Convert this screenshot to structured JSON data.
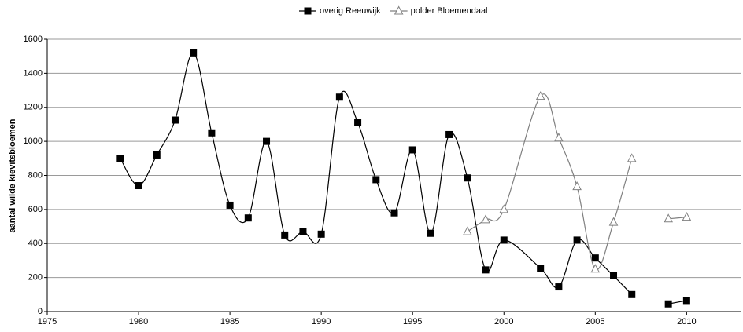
{
  "chart_data": {
    "type": "line",
    "smooth": true,
    "y_label": "aantal wilde kievitsbloemen",
    "x": [
      1979,
      1980,
      1981,
      1982,
      1983,
      1984,
      1985,
      1986,
      1987,
      1988,
      1989,
      1990,
      1991,
      1992,
      1993,
      1994,
      1995,
      1996,
      1997,
      1998,
      1999,
      2000,
      2002,
      2003,
      2004,
      2005,
      2006,
      2007,
      2008,
      2009,
      2010
    ],
    "series": [
      {
        "name": "overig Reeuwijk",
        "color": "#000000",
        "marker": "square",
        "values": [
          900,
          740,
          920,
          1125,
          1520,
          1050,
          625,
          550,
          1000,
          450,
          470,
          455,
          1260,
          1110,
          775,
          580,
          950,
          460,
          1040,
          785,
          245,
          420,
          255,
          145,
          420,
          315,
          210,
          100,
          null,
          45,
          65
        ]
      },
      {
        "name": "polder Bloemendaal",
        "color": "#808080",
        "marker": "triangle",
        "values": [
          null,
          null,
          null,
          null,
          null,
          null,
          null,
          null,
          null,
          null,
          null,
          null,
          null,
          null,
          null,
          null,
          null,
          null,
          null,
          470,
          540,
          600,
          1265,
          1020,
          735,
          250,
          525,
          900,
          null,
          545,
          555
        ]
      }
    ],
    "xlim": [
      1975,
      2013
    ],
    "xticks": [
      1975,
      1980,
      1985,
      1990,
      1995,
      2000,
      2005,
      2010
    ],
    "ylim": [
      0,
      1600
    ],
    "yticks": [
      0,
      200,
      400,
      600,
      800,
      1000,
      1200,
      1400,
      1600
    ],
    "grid": true,
    "legend": "top"
  }
}
